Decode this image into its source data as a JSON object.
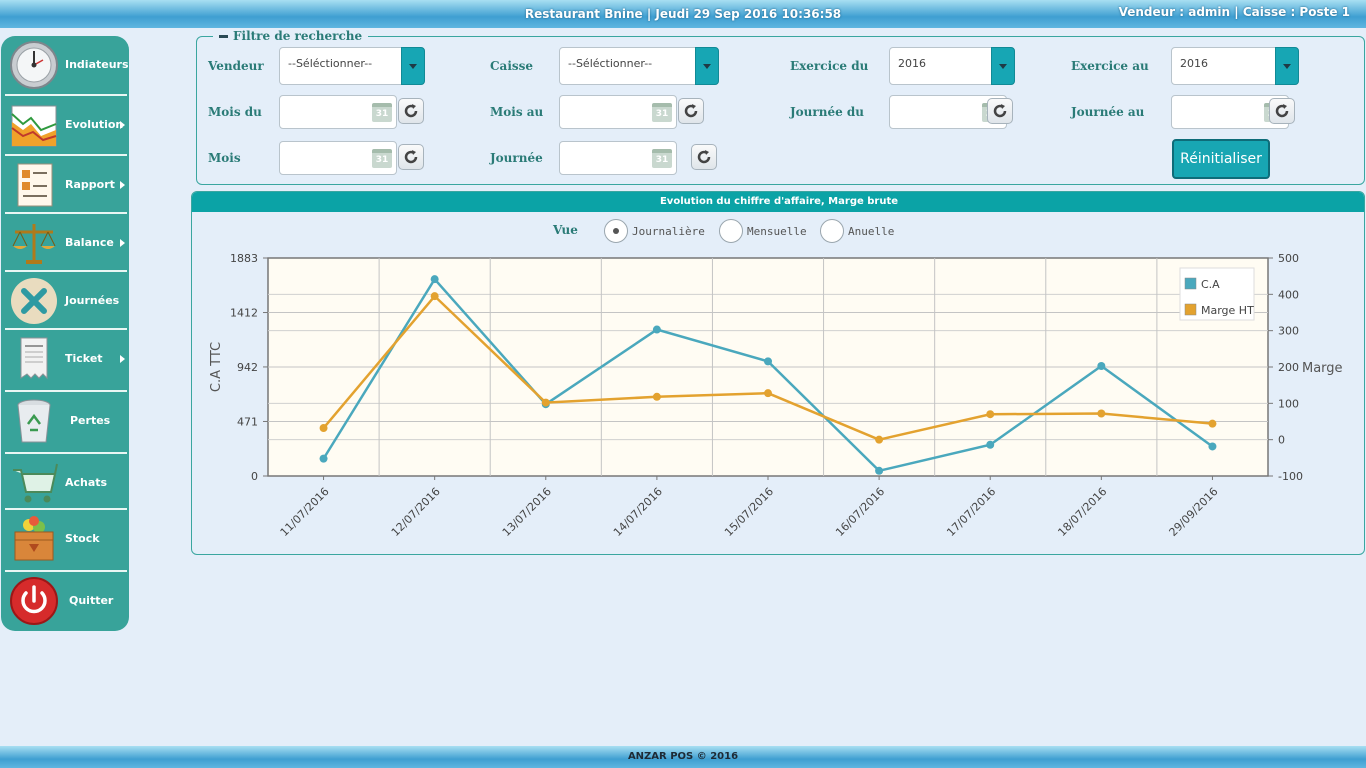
{
  "header": {
    "center_text": "Restaurant Bnine |  Jeudi 29 Sep 2016 10:36:58",
    "right_text": "Vendeur : admin | Caisse : Poste 1"
  },
  "footer": {
    "text": "ANZAR POS © 2016"
  },
  "sidebar": {
    "items": [
      {
        "label": "Indiateurs",
        "icon": "gauge-icon",
        "submenu": false
      },
      {
        "label": "Evolution",
        "icon": "chart-icon",
        "submenu": true
      },
      {
        "label": "Rapport",
        "icon": "report-icon",
        "submenu": true
      },
      {
        "label": "Balance",
        "icon": "scale-icon",
        "submenu": true
      },
      {
        "label": "Journées",
        "icon": "close-day-icon",
        "submenu": false
      },
      {
        "label": "Ticket",
        "icon": "receipt-icon",
        "submenu": true
      },
      {
        "label": "Pertes",
        "icon": "recycle-bin-icon",
        "submenu": false
      },
      {
        "label": "Achats",
        "icon": "cart-icon",
        "submenu": false
      },
      {
        "label": "Stock",
        "icon": "stock-box-icon",
        "submenu": false
      },
      {
        "label": "Quitter",
        "icon": "power-icon",
        "submenu": false
      }
    ]
  },
  "filter": {
    "legend": "Filtre de recherche",
    "vendeur_label": "Vendeur",
    "vendeur_value": "--Séléctionner--",
    "caisse_label": "Caisse",
    "caisse_value": "--Séléctionner--",
    "exercice_du_label": "Exercice du",
    "exercice_du_value": "2016",
    "exercice_au_label": "Exercice au",
    "exercice_au_value": "2016",
    "mois_du_label": "Mois du",
    "mois_au_label": "Mois au",
    "journee_du_label": "Journée du",
    "journee_au_label": "Journée au",
    "mois_label": "Mois",
    "journee_label": "Journée",
    "calendar_day": "31",
    "reset_label": "Réinitialiser"
  },
  "chart_panel": {
    "title": "Evolution du chiffre d'affaire, Marge brute",
    "vue_label": "Vue",
    "options": [
      "Journalière",
      "Mensuelle",
      "Anuelle"
    ],
    "selected": "Journalière"
  },
  "colors": {
    "ca": "#4aa8bd",
    "marge": "#e3a22f",
    "accent": "#0ba3a6"
  },
  "chart_data": {
    "type": "line",
    "categories": [
      "11/07/2016",
      "12/07/2016",
      "13/07/2016",
      "14/07/2016",
      "15/07/2016",
      "16/07/2016",
      "17/07/2016",
      "18/07/2016",
      "29/09/2016"
    ],
    "series": [
      {
        "name": "C.A",
        "axis": "left",
        "values": [
          150,
          1700,
          620,
          1265,
          990,
          45,
          270,
          950,
          255
        ]
      },
      {
        "name": "Marge HT",
        "axis": "right",
        "values": [
          32,
          395,
          102,
          118,
          128,
          0,
          70,
          72,
          44
        ]
      }
    ],
    "ylabel": "C.A TTC",
    "y2label": "Marge",
    "yticks": [
      0,
      471,
      942,
      1412,
      1883
    ],
    "ylim": [
      0,
      1883
    ],
    "y2ticks": [
      -100,
      0,
      100,
      200,
      300,
      400,
      500
    ],
    "y2lim": [
      -100,
      500
    ],
    "grid": true,
    "legend_position": "top-right"
  }
}
